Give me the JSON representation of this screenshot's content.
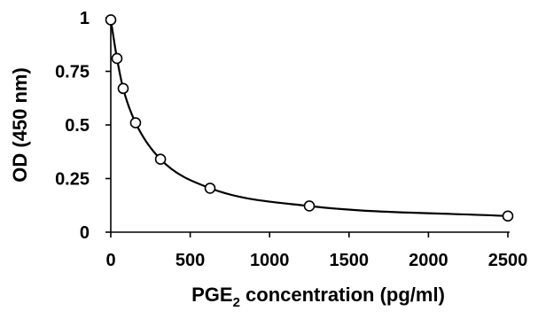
{
  "chart_data": {
    "type": "scatter",
    "title": "",
    "xlabel": {
      "prefix": "PGE",
      "subscript": "2",
      "suffix": " concentration (pg/ml)"
    },
    "ylabel": "OD (450 nm)",
    "xlim": [
      0,
      2500
    ],
    "ylim": [
      0,
      1
    ],
    "x_ticks": [
      0,
      500,
      1000,
      1500,
      2000,
      2500
    ],
    "x_tick_labels": [
      "0",
      "500",
      "1000",
      "1500",
      "2000",
      "2500"
    ],
    "y_ticks": [
      0,
      0.25,
      0.5,
      0.75,
      1
    ],
    "y_tick_labels": [
      "0",
      "0.25",
      "0.5",
      "0.75",
      "1"
    ],
    "grid": false,
    "legend": "none",
    "series": [
      {
        "x": [
          0,
          39,
          78,
          156,
          313,
          625,
          1250,
          2500
        ],
        "y": [
          0.99,
          0.81,
          0.67,
          0.51,
          0.34,
          0.205,
          0.122,
          0.075
        ],
        "marker": "open-circle",
        "fit": "smooth-curve"
      }
    ],
    "colors": {
      "line": "#000000",
      "marker_fill": "#ffffff",
      "marker_stroke": "#000000"
    }
  }
}
